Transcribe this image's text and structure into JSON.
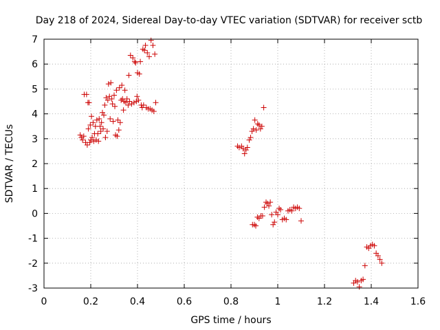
{
  "chart_data": {
    "type": "scatter",
    "title": "Day 218 of 2024, Sidereal Day-to-day VTEC variation (SDTVAR) for receiver sctb",
    "xlabel": "GPS time / hours",
    "ylabel": "SDTVAR / TECUs",
    "xlim": [
      0,
      1.6
    ],
    "ylim": [
      -3,
      7
    ],
    "xticks": [
      0,
      0.2,
      0.4,
      0.6,
      0.8,
      1,
      1.2,
      1.4,
      1.6
    ],
    "xtick_labels": [
      "0",
      "0.2",
      "0.4",
      "0.6",
      "0.8",
      "1",
      "1.2",
      "1.4",
      "1.6"
    ],
    "yticks": [
      -3,
      -2,
      -1,
      0,
      1,
      2,
      3,
      4,
      5,
      6,
      7
    ],
    "ytick_labels": [
      "-3",
      "-2",
      "-1",
      "0",
      "1",
      "2",
      "3",
      "4",
      "5",
      "6",
      "7"
    ],
    "grid": true,
    "marker": "+",
    "marker_color": "#cc0000",
    "series": [
      {
        "name": "SDTVAR",
        "points": [
          [
            0.155,
            3.15
          ],
          [
            0.16,
            3.05
          ],
          [
            0.165,
            2.95
          ],
          [
            0.17,
            3.1
          ],
          [
            0.172,
            4.78
          ],
          [
            0.178,
            2.85
          ],
          [
            0.182,
            4.78
          ],
          [
            0.185,
            2.75
          ],
          [
            0.188,
            4.45
          ],
          [
            0.19,
            3.4
          ],
          [
            0.193,
            4.45
          ],
          [
            0.196,
            2.85
          ],
          [
            0.198,
            3.55
          ],
          [
            0.2,
            2.95
          ],
          [
            0.203,
            3.9
          ],
          [
            0.206,
            3.05
          ],
          [
            0.21,
            3.65
          ],
          [
            0.213,
            2.9
          ],
          [
            0.216,
            3.2
          ],
          [
            0.22,
            3.5
          ],
          [
            0.223,
            2.95
          ],
          [
            0.226,
            3.75
          ],
          [
            0.23,
            3.2
          ],
          [
            0.233,
            2.9
          ],
          [
            0.236,
            3.8
          ],
          [
            0.24,
            3.5
          ],
          [
            0.243,
            3.3
          ],
          [
            0.246,
            3.65
          ],
          [
            0.25,
            4.05
          ],
          [
            0.253,
            3.4
          ],
          [
            0.256,
            3.95
          ],
          [
            0.26,
            4.35
          ],
          [
            0.263,
            3.05
          ],
          [
            0.266,
            4.65
          ],
          [
            0.27,
            3.3
          ],
          [
            0.273,
            4.55
          ],
          [
            0.276,
            5.2
          ],
          [
            0.28,
            4.7
          ],
          [
            0.283,
            3.8
          ],
          [
            0.286,
            5.25
          ],
          [
            0.29,
            4.6
          ],
          [
            0.293,
            4.4
          ],
          [
            0.296,
            3.7
          ],
          [
            0.3,
            4.75
          ],
          [
            0.303,
            4.3
          ],
          [
            0.306,
            3.15
          ],
          [
            0.31,
            4.95
          ],
          [
            0.313,
            3.1
          ],
          [
            0.316,
            3.75
          ],
          [
            0.32,
            3.35
          ],
          [
            0.323,
            5.05
          ],
          [
            0.326,
            3.65
          ],
          [
            0.33,
            4.55
          ],
          [
            0.333,
            5.15
          ],
          [
            0.336,
            4.6
          ],
          [
            0.34,
            4.15
          ],
          [
            0.343,
            4.5
          ],
          [
            0.346,
            4.95
          ],
          [
            0.35,
            4.45
          ],
          [
            0.355,
            4.6
          ],
          [
            0.36,
            4.35
          ],
          [
            0.363,
            5.55
          ],
          [
            0.366,
            4.5
          ],
          [
            0.37,
            6.35
          ],
          [
            0.375,
            4.4
          ],
          [
            0.38,
            6.25
          ],
          [
            0.385,
            4.45
          ],
          [
            0.388,
            6.1
          ],
          [
            0.392,
            6.05
          ],
          [
            0.395,
            4.5
          ],
          [
            0.398,
            4.7
          ],
          [
            0.4,
            5.65
          ],
          [
            0.404,
            4.55
          ],
          [
            0.408,
            5.6
          ],
          [
            0.412,
            6.1
          ],
          [
            0.416,
            4.35
          ],
          [
            0.42,
            4.25
          ],
          [
            0.423,
            6.6
          ],
          [
            0.426,
            4.35
          ],
          [
            0.43,
            6.55
          ],
          [
            0.434,
            6.75
          ],
          [
            0.438,
            4.25
          ],
          [
            0.442,
            6.45
          ],
          [
            0.446,
            4.2
          ],
          [
            0.45,
            6.3
          ],
          [
            0.454,
            4.2
          ],
          [
            0.458,
            6.95
          ],
          [
            0.462,
            4.15
          ],
          [
            0.466,
            6.75
          ],
          [
            0.47,
            4.1
          ],
          [
            0.474,
            6.4
          ],
          [
            0.478,
            4.45
          ],
          [
            0.828,
            2.7
          ],
          [
            0.835,
            2.65
          ],
          [
            0.845,
            2.7
          ],
          [
            0.852,
            2.6
          ],
          [
            0.858,
            2.4
          ],
          [
            0.864,
            2.55
          ],
          [
            0.87,
            2.65
          ],
          [
            0.878,
            2.95
          ],
          [
            0.884,
            3.05
          ],
          [
            0.89,
            3.3
          ],
          [
            0.896,
            3.4
          ],
          [
            0.902,
            3.75
          ],
          [
            0.908,
            3.35
          ],
          [
            0.914,
            3.6
          ],
          [
            0.92,
            3.55
          ],
          [
            0.926,
            3.4
          ],
          [
            0.932,
            3.5
          ],
          [
            0.94,
            4.25
          ],
          [
            0.892,
            -0.45
          ],
          [
            0.9,
            -0.45
          ],
          [
            0.906,
            -0.5
          ],
          [
            0.913,
            -0.15
          ],
          [
            0.92,
            -0.2
          ],
          [
            0.928,
            -0.1
          ],
          [
            0.935,
            -0.1
          ],
          [
            0.943,
            0.25
          ],
          [
            0.95,
            0.45
          ],
          [
            0.956,
            0.4
          ],
          [
            0.962,
            0.3
          ],
          [
            0.968,
            0.45
          ],
          [
            0.974,
            -0.05
          ],
          [
            0.98,
            -0.45
          ],
          [
            0.986,
            -0.35
          ],
          [
            0.993,
            0.05
          ],
          [
            1.0,
            -0.05
          ],
          [
            1.006,
            0.2
          ],
          [
            1.012,
            0.15
          ],
          [
            1.02,
            -0.25
          ],
          [
            1.028,
            -0.2
          ],
          [
            1.036,
            -0.25
          ],
          [
            1.044,
            0.1
          ],
          [
            1.052,
            0.15
          ],
          [
            1.06,
            0.1
          ],
          [
            1.068,
            0.25
          ],
          [
            1.076,
            0.2
          ],
          [
            1.084,
            0.25
          ],
          [
            1.092,
            0.2
          ],
          [
            1.1,
            -0.3
          ],
          [
            1.325,
            -2.8
          ],
          [
            1.333,
            -2.7
          ],
          [
            1.341,
            -2.75
          ],
          [
            1.349,
            -2.95
          ],
          [
            1.357,
            -2.7
          ],
          [
            1.365,
            -2.65
          ],
          [
            1.373,
            -2.1
          ],
          [
            1.381,
            -1.35
          ],
          [
            1.389,
            -1.4
          ],
          [
            1.397,
            -1.3
          ],
          [
            1.405,
            -1.25
          ],
          [
            1.413,
            -1.3
          ],
          [
            1.421,
            -1.6
          ],
          [
            1.429,
            -1.7
          ],
          [
            1.437,
            -1.85
          ],
          [
            1.445,
            -2.0
          ]
        ]
      }
    ]
  }
}
